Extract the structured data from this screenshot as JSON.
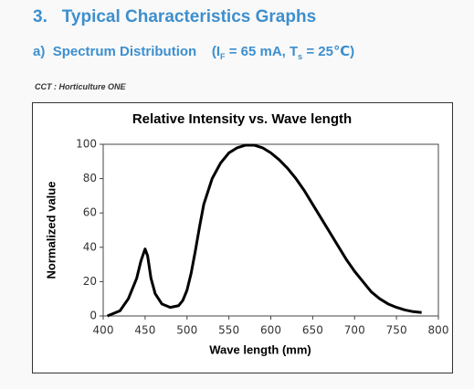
{
  "section_title": {
    "number": "3.",
    "text": "Typical Characteristics Graphs"
  },
  "subsection": {
    "label": "a)",
    "text": "Spectrum Distribution",
    "condition": [
      "(I",
      "F",
      " = 65 mA, T",
      "s",
      " = 25℃)"
    ]
  },
  "caption": "CCT : Horticulture ONE",
  "chart_data": {
    "type": "line",
    "title": "Relative Intensity vs. Wave length",
    "x_label": "Wave length (mm)",
    "y_label": "Normalized value",
    "x": [
      405,
      410,
      420,
      430,
      440,
      445,
      450,
      453,
      457,
      462,
      470,
      480,
      490,
      495,
      500,
      505,
      510,
      515,
      520,
      530,
      540,
      550,
      560,
      570,
      580,
      590,
      600,
      610,
      620,
      630,
      640,
      650,
      660,
      670,
      680,
      690,
      700,
      710,
      720,
      730,
      740,
      750,
      760,
      770,
      780
    ],
    "series": [
      {
        "name": "Horticulture ONE",
        "color": "#000000",
        "values": [
          0,
          1,
          3,
          10,
          22,
          32,
          39,
          35,
          22,
          13,
          7,
          5,
          6,
          9,
          15,
          25,
          38,
          52,
          65,
          80,
          89,
          95,
          98,
          99.5,
          99.5,
          98,
          95,
          91,
          86,
          80,
          73,
          65,
          57,
          49,
          41,
          33,
          26,
          20,
          14,
          10,
          7,
          5,
          3.5,
          2.5,
          2
        ]
      }
    ],
    "xlim": [
      400,
      800
    ],
    "ylim": [
      0,
      100
    ],
    "xticks": [
      400,
      450,
      500,
      550,
      600,
      650,
      700,
      750,
      800
    ],
    "yticks": [
      0,
      20,
      40,
      60,
      80,
      100
    ]
  }
}
